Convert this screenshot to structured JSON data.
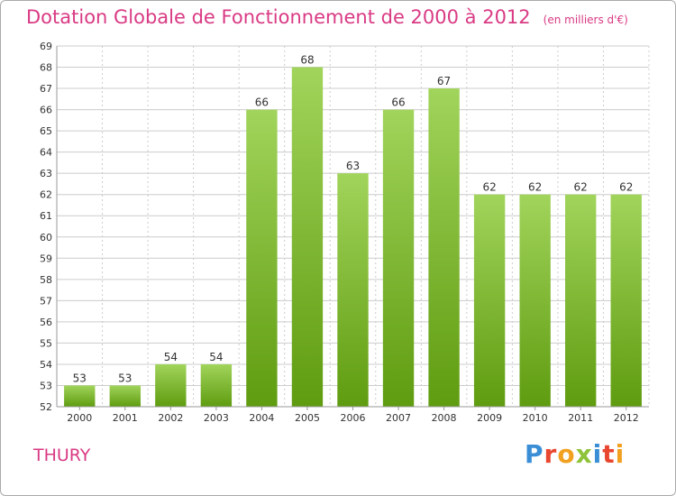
{
  "title": "Dotation Globale de Fonctionnement de 2000 à 2012",
  "title_unit": "(en milliers d'€)",
  "commune": "THURY",
  "logo": {
    "letters": [
      {
        "char": "P",
        "color": "#3a8ed6"
      },
      {
        "char": "r",
        "color": "#e8462f"
      },
      {
        "char": "o",
        "color": "#f2a020"
      },
      {
        "char": "x",
        "color": "#8fc33a"
      },
      {
        "char": "i",
        "color": "#3a8ed6"
      },
      {
        "char": "t",
        "color": "#e8462f"
      },
      {
        "char": "i",
        "color": "#f2a020"
      }
    ]
  },
  "colors": {
    "title": "#d93a84",
    "bar_top": "#a1d45b",
    "bar_bottom": "#5f9c10",
    "grid": "#cccccc"
  },
  "chart_data": {
    "type": "bar",
    "title": "Dotation Globale de Fonctionnement de 2000 à 2012",
    "categories": [
      "2000",
      "2001",
      "2002",
      "2003",
      "2004",
      "2005",
      "2006",
      "2007",
      "2008",
      "2009",
      "2010",
      "2011",
      "2012"
    ],
    "values": [
      53,
      53,
      54,
      54,
      66,
      68,
      63,
      66,
      67,
      62,
      62,
      62,
      62
    ],
    "ylim": [
      52,
      69
    ],
    "yticks": [
      52,
      53,
      54,
      55,
      56,
      57,
      58,
      59,
      60,
      61,
      62,
      63,
      64,
      65,
      66,
      67,
      68,
      69
    ],
    "xlabel": "",
    "ylabel": "",
    "grid": true,
    "data_labels": true
  }
}
